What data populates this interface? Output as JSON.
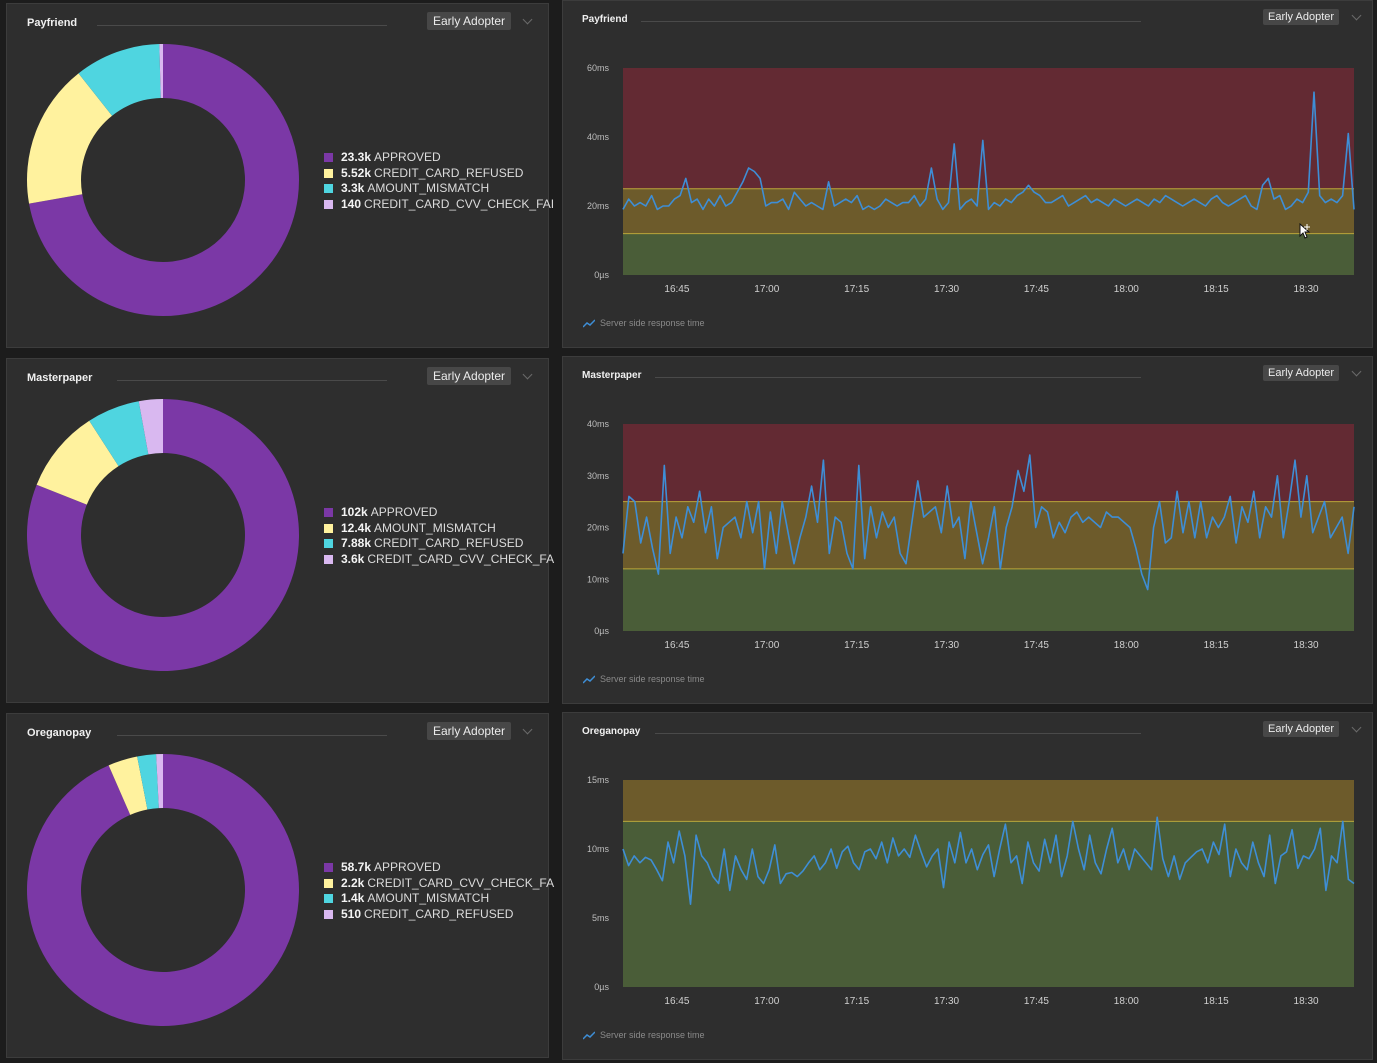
{
  "badge_label": "Early Adopter",
  "series_label": "Server side response time",
  "icons": {
    "caret": "chevron-down-icon",
    "series": "trend-line-icon",
    "cursor": "move-cursor-icon"
  },
  "colors": {
    "approved": "#7b38a6",
    "yellow": "#fff29e",
    "cyan": "#4fd5e0",
    "lavender": "#d9b8f0",
    "zone_red": "#632a33",
    "zone_yellow": "#6d5b2b",
    "zone_green": "#4a5d38",
    "threshold_line": "#b9a63a",
    "series_line": "#3e8ed6"
  },
  "rows": [
    {
      "donut": {
        "title": "Payfriend",
        "segments": [
          {
            "value_label": "23.3k",
            "label": "APPROVED",
            "value": 23300,
            "color": "#7b38a6"
          },
          {
            "value_label": "5.52k",
            "label": "CREDIT_CARD_REFUSED",
            "value": 5520,
            "color": "#fff29e"
          },
          {
            "value_label": "3.3k",
            "label": "AMOUNT_MISMATCH",
            "value": 3300,
            "color": "#4fd5e0"
          },
          {
            "value_label": "140",
            "label": "CREDIT_CARD_CVV_CHECK_FAI",
            "value": 140,
            "color": "#d9b8f0"
          }
        ]
      },
      "line": {
        "title": "Payfriend",
        "chart_data": {
          "type": "line",
          "title": "Payfriend",
          "series_name": "Server side response time",
          "unit": "ms",
          "ylim": [
            0,
            60
          ],
          "y_ticks": [
            {
              "v": 0,
              "label": "0µs"
            },
            {
              "v": 20,
              "label": "20ms"
            },
            {
              "v": 40,
              "label": "40ms"
            },
            {
              "v": 60,
              "label": "60ms"
            }
          ],
          "x_range": [
            16.6,
            18.6333
          ],
          "x_ticks": [
            {
              "v": 16.75,
              "label": "16:45"
            },
            {
              "v": 17.0,
              "label": "17:00"
            },
            {
              "v": 17.25,
              "label": "17:15"
            },
            {
              "v": 17.5,
              "label": "17:30"
            },
            {
              "v": 17.75,
              "label": "17:45"
            },
            {
              "v": 18.0,
              "label": "18:00"
            },
            {
              "v": 18.25,
              "label": "18:15"
            },
            {
              "v": 18.5,
              "label": "18:30"
            }
          ],
          "zones": [
            {
              "from": 25,
              "to": 60,
              "color": "#632a33"
            },
            {
              "from": 12,
              "to": 25,
              "color": "#6d5b2b"
            },
            {
              "from": 0,
              "to": 12,
              "color": "#4a5d38"
            }
          ],
          "threshold_lines": [
            25,
            12
          ],
          "y": [
            19,
            22,
            20,
            21,
            20,
            23,
            19,
            20,
            20,
            22,
            23,
            28,
            21,
            22,
            19,
            22,
            20,
            23,
            20,
            21,
            24,
            27,
            31,
            30,
            28,
            20,
            21,
            21,
            22,
            19,
            24,
            22,
            20,
            21,
            20,
            19,
            27,
            20,
            21,
            22,
            21,
            23,
            19,
            20,
            19,
            20,
            22,
            21,
            20,
            21,
            21,
            23,
            20,
            22,
            31,
            22,
            19,
            21,
            38,
            19,
            21,
            22,
            20,
            39,
            19,
            21,
            20,
            22,
            21,
            23,
            24,
            26,
            24,
            23,
            21,
            21,
            22,
            23,
            20,
            21,
            22,
            23,
            21,
            22,
            21,
            20,
            22,
            21,
            20,
            21,
            22,
            21,
            20,
            22,
            21,
            23,
            22,
            21,
            20,
            21,
            22,
            21,
            20,
            22,
            23,
            21,
            20,
            21,
            22,
            23,
            20,
            19,
            26,
            28,
            22,
            23,
            19,
            20,
            22,
            21,
            24,
            53,
            23,
            21,
            22,
            21,
            23,
            41,
            19
          ]
        }
      }
    },
    {
      "donut": {
        "title": "Masterpaper",
        "segments": [
          {
            "value_label": "102k",
            "label": "APPROVED",
            "value": 102000,
            "color": "#7b38a6"
          },
          {
            "value_label": "12.4k",
            "label": "AMOUNT_MISMATCH",
            "value": 12400,
            "color": "#fff29e"
          },
          {
            "value_label": "7.88k",
            "label": "CREDIT_CARD_REFUSED",
            "value": 7880,
            "color": "#4fd5e0"
          },
          {
            "value_label": "3.6k",
            "label": "CREDIT_CARD_CVV_CHECK_FA",
            "value": 3600,
            "color": "#d9b8f0"
          }
        ]
      },
      "line": {
        "title": "Masterpaper",
        "chart_data": {
          "type": "line",
          "title": "Masterpaper",
          "series_name": "Server side response time",
          "unit": "ms",
          "ylim": [
            0,
            40
          ],
          "y_ticks": [
            {
              "v": 0,
              "label": "0µs"
            },
            {
              "v": 10,
              "label": "10ms"
            },
            {
              "v": 20,
              "label": "20ms"
            },
            {
              "v": 30,
              "label": "30ms"
            },
            {
              "v": 40,
              "label": "40ms"
            }
          ],
          "x_range": [
            16.6,
            18.6333
          ],
          "x_ticks": [
            {
              "v": 16.75,
              "label": "16:45"
            },
            {
              "v": 17.0,
              "label": "17:00"
            },
            {
              "v": 17.25,
              "label": "17:15"
            },
            {
              "v": 17.5,
              "label": "17:30"
            },
            {
              "v": 17.75,
              "label": "17:45"
            },
            {
              "v": 18.0,
              "label": "18:00"
            },
            {
              "v": 18.25,
              "label": "18:15"
            },
            {
              "v": 18.5,
              "label": "18:30"
            }
          ],
          "zones": [
            {
              "from": 25,
              "to": 40,
              "color": "#632a33"
            },
            {
              "from": 12,
              "to": 25,
              "color": "#6d5b2b"
            },
            {
              "from": 0,
              "to": 12,
              "color": "#4a5d38"
            }
          ],
          "threshold_lines": [
            25,
            12
          ],
          "y": [
            15,
            26,
            25,
            17,
            22,
            16,
            11,
            32,
            15,
            22,
            18,
            24,
            21,
            27,
            19,
            24,
            14,
            20,
            21,
            22,
            18,
            25,
            19,
            25,
            12,
            23,
            15,
            25,
            19,
            13,
            18,
            22,
            28,
            21,
            33,
            15,
            22,
            21,
            15,
            12,
            32,
            14,
            24,
            18,
            23,
            20,
            22,
            15,
            13,
            21,
            29,
            22,
            23,
            24,
            19,
            28,
            20,
            22,
            14,
            25,
            19,
            13,
            18,
            24,
            12,
            20,
            24,
            31,
            27,
            34,
            20,
            24,
            23,
            18,
            21,
            19,
            22,
            23,
            21,
            22,
            21,
            20,
            23,
            22,
            22,
            21,
            20,
            16,
            11,
            8,
            20,
            25,
            17,
            18,
            27,
            19,
            25,
            18,
            25,
            18,
            22,
            20,
            22,
            26,
            17,
            24,
            21,
            27,
            18,
            24,
            22,
            30,
            18,
            25,
            33,
            22,
            30,
            19,
            22,
            25,
            18,
            20,
            22,
            15,
            24
          ]
        }
      }
    },
    {
      "donut": {
        "title": "Oreganopay",
        "segments": [
          {
            "value_label": "58.7k",
            "label": "APPROVED",
            "value": 58700,
            "color": "#7b38a6"
          },
          {
            "value_label": "2.2k",
            "label": "CREDIT_CARD_CVV_CHECK_FA",
            "value": 2200,
            "color": "#fff29e"
          },
          {
            "value_label": "1.4k",
            "label": "AMOUNT_MISMATCH",
            "value": 1400,
            "color": "#4fd5e0"
          },
          {
            "value_label": "510",
            "label": "CREDIT_CARD_REFUSED",
            "value": 510,
            "color": "#d9b8f0"
          }
        ]
      },
      "line": {
        "title": "Oreganopay",
        "chart_data": {
          "type": "line",
          "title": "Oreganopay",
          "series_name": "Server side response time",
          "unit": "ms",
          "ylim": [
            0,
            15
          ],
          "y_ticks": [
            {
              "v": 0,
              "label": "0µs"
            },
            {
              "v": 5,
              "label": "5ms"
            },
            {
              "v": 10,
              "label": "10ms"
            },
            {
              "v": 15,
              "label": "15ms"
            }
          ],
          "x_range": [
            16.6,
            18.6333
          ],
          "x_ticks": [
            {
              "v": 16.75,
              "label": "16:45"
            },
            {
              "v": 17.0,
              "label": "17:00"
            },
            {
              "v": 17.25,
              "label": "17:15"
            },
            {
              "v": 17.5,
              "label": "17:30"
            },
            {
              "v": 17.75,
              "label": "17:45"
            },
            {
              "v": 18.0,
              "label": "18:00"
            },
            {
              "v": 18.25,
              "label": "18:15"
            },
            {
              "v": 18.5,
              "label": "18:30"
            }
          ],
          "zones": [
            {
              "from": 12,
              "to": 15,
              "color": "#6d5b2b"
            },
            {
              "from": 0,
              "to": 12,
              "color": "#4a5d38"
            }
          ],
          "threshold_lines": [
            12
          ],
          "y": [
            10,
            8.8,
            9.5,
            9,
            9.4,
            9.2,
            8.5,
            7.7,
            10.5,
            9,
            11.3,
            9.5,
            6,
            11,
            9.5,
            9,
            8,
            7.5,
            10,
            7,
            9.5,
            8.5,
            7.8,
            10,
            8,
            7.5,
            8.5,
            10.3,
            7.5,
            8.2,
            8.3,
            8,
            8.4,
            9,
            9.5,
            8.5,
            9,
            10,
            8.6,
            9.8,
            10.2,
            9,
            8.5,
            9.8,
            10,
            9.3,
            10.5,
            9,
            10.8,
            9.5,
            10,
            9.4,
            11,
            9.8,
            8.7,
            9.5,
            10,
            7.2,
            10.5,
            9,
            11.2,
            9,
            10,
            8.5,
            9.6,
            10.3,
            8,
            10,
            11.8,
            9,
            9.5,
            7.5,
            10.5,
            9,
            8.4,
            10.7,
            9,
            11,
            8,
            9.5,
            12,
            10,
            8.5,
            11,
            9,
            8.2,
            10,
            11.5,
            9,
            10,
            8.5,
            10,
            9.5,
            9,
            8.5,
            12.3,
            9.3,
            8,
            9.5,
            7.8,
            9,
            9.4,
            9.8,
            10,
            9,
            10.5,
            9.6,
            11.8,
            8,
            10,
            9,
            8.5,
            10.5,
            9,
            8,
            11,
            7.5,
            9.5,
            9.8,
            11.4,
            8.6,
            9.5,
            9.3,
            10,
            11.5,
            7,
            9.5,
            9,
            12,
            7.8,
            7.5
          ]
        }
      }
    }
  ]
}
